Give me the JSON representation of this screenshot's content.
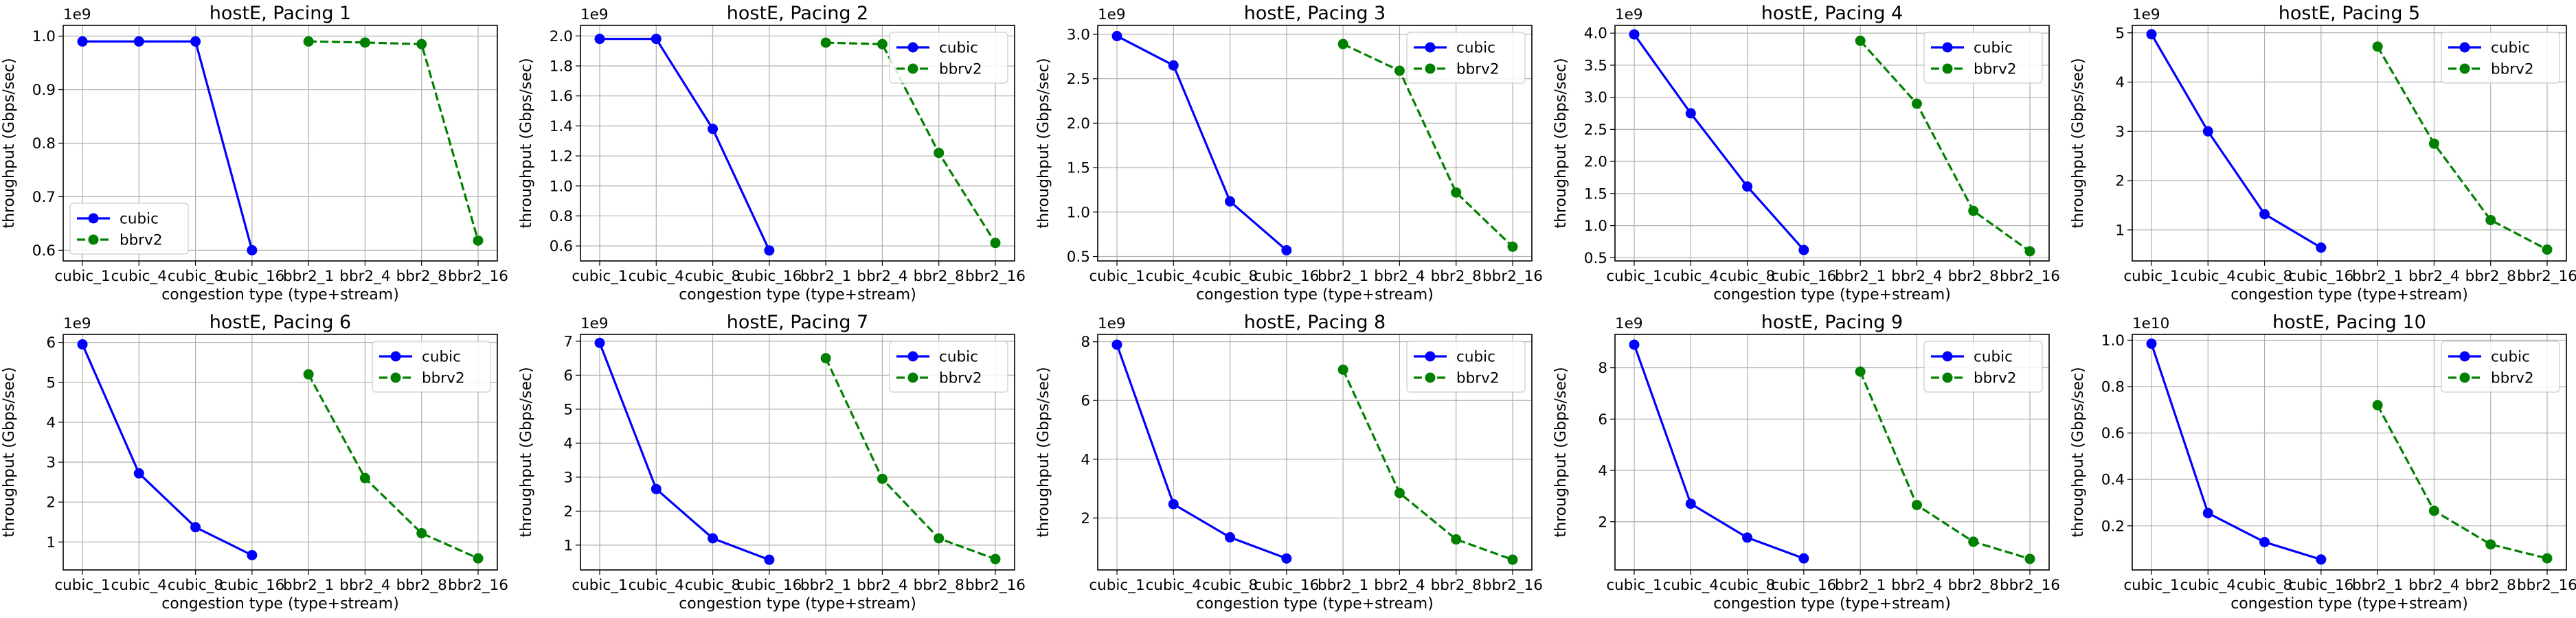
{
  "colors": {
    "cubic": "#0000ff",
    "bbrv2": "#008000",
    "grid": "#b0b0b0"
  },
  "chart_data": [
    {
      "type": "line",
      "title": "hostE, Pacing 1",
      "xlabel": "congestion type (type+stream)",
      "ylabel": "throughput (Gbps/sec)",
      "categories": [
        "cubic_1",
        "cubic_4",
        "cubic_8",
        "cubic_16",
        "bbr2_1",
        "bbr2_4",
        "bbr2_8",
        "bbr2_16"
      ],
      "ylim": [
        0.58,
        1.02
      ],
      "yticks": [
        0.6,
        0.7,
        0.8,
        0.9,
        1.0
      ],
      "ytick_labels": [
        "0.6",
        "0.7",
        "0.8",
        "0.9",
        "1.0"
      ],
      "offset_label": "1e9",
      "grid": true,
      "legend_loc": "lower-left",
      "series": [
        {
          "name": "cubic",
          "style": "solid",
          "values": [
            0.99,
            0.99,
            0.99,
            0.6,
            null,
            null,
            null,
            null
          ]
        },
        {
          "name": "bbrv2",
          "style": "dashed",
          "values": [
            null,
            null,
            null,
            null,
            0.99,
            0.988,
            0.985,
            0.618
          ]
        }
      ]
    },
    {
      "type": "line",
      "title": "hostE, Pacing 2",
      "xlabel": "congestion type (type+stream)",
      "ylabel": "throughput (Gbps/sec)",
      "categories": [
        "cubic_1",
        "cubic_4",
        "cubic_8",
        "cubic_16",
        "bbr2_1",
        "bbr2_4",
        "bbr2_8",
        "bbr2_16"
      ],
      "ylim": [
        0.5,
        2.07
      ],
      "yticks": [
        0.6,
        0.8,
        1.0,
        1.2,
        1.4,
        1.6,
        1.8,
        2.0
      ],
      "ytick_labels": [
        "0.6",
        "0.8",
        "1.0",
        "1.2",
        "1.4",
        "1.6",
        "1.8",
        "2.0"
      ],
      "offset_label": "1e9",
      "grid": true,
      "legend_loc": "upper-right",
      "series": [
        {
          "name": "cubic",
          "style": "solid",
          "values": [
            1.98,
            1.98,
            1.38,
            0.57,
            null,
            null,
            null,
            null
          ]
        },
        {
          "name": "bbrv2",
          "style": "dashed",
          "values": [
            null,
            null,
            null,
            null,
            1.955,
            1.945,
            1.22,
            0.62
          ]
        }
      ]
    },
    {
      "type": "line",
      "title": "hostE, Pacing 3",
      "xlabel": "congestion type (type+stream)",
      "ylabel": "throughput (Gbps/sec)",
      "categories": [
        "cubic_1",
        "cubic_4",
        "cubic_8",
        "cubic_16",
        "bbr2_1",
        "bbr2_4",
        "bbr2_8",
        "bbr2_16"
      ],
      "ylim": [
        0.45,
        3.1
      ],
      "yticks": [
        0.5,
        1.0,
        1.5,
        2.0,
        2.5,
        3.0
      ],
      "ytick_labels": [
        "0.5",
        "1.0",
        "1.5",
        "2.0",
        "2.5",
        "3.0"
      ],
      "offset_label": "1e9",
      "grid": true,
      "legend_loc": "upper-right",
      "series": [
        {
          "name": "cubic",
          "style": "solid",
          "values": [
            2.98,
            2.65,
            1.12,
            0.57,
            null,
            null,
            null,
            null
          ]
        },
        {
          "name": "bbrv2",
          "style": "dashed",
          "values": [
            null,
            null,
            null,
            null,
            2.89,
            2.59,
            1.22,
            0.61
          ]
        }
      ]
    },
    {
      "type": "line",
      "title": "hostE, Pacing 4",
      "xlabel": "congestion type (type+stream)",
      "ylabel": "throughput (Gbps/sec)",
      "categories": [
        "cubic_1",
        "cubic_4",
        "cubic_8",
        "cubic_16",
        "bbr2_1",
        "bbr2_4",
        "bbr2_8",
        "bbr2_16"
      ],
      "ylim": [
        0.45,
        4.12
      ],
      "yticks": [
        0.5,
        1.0,
        1.5,
        2.0,
        2.5,
        3.0,
        3.5,
        4.0
      ],
      "ytick_labels": [
        "0.5",
        "1.0",
        "1.5",
        "2.0",
        "2.5",
        "3.0",
        "3.5",
        "4.0"
      ],
      "offset_label": "1e9",
      "grid": true,
      "legend_loc": "upper-right",
      "series": [
        {
          "name": "cubic",
          "style": "solid",
          "values": [
            3.98,
            2.75,
            1.61,
            0.62,
            null,
            null,
            null,
            null
          ]
        },
        {
          "name": "bbrv2",
          "style": "dashed",
          "values": [
            null,
            null,
            null,
            null,
            3.88,
            2.9,
            1.23,
            0.6
          ]
        }
      ]
    },
    {
      "type": "line",
      "title": "hostE, Pacing 5",
      "xlabel": "congestion type (type+stream)",
      "ylabel": "throughput (Gbps/sec)",
      "categories": [
        "cubic_1",
        "cubic_4",
        "cubic_8",
        "cubic_16",
        "bbr2_1",
        "bbr2_4",
        "bbr2_8",
        "bbr2_16"
      ],
      "ylim": [
        0.37,
        5.15
      ],
      "yticks": [
        1,
        2,
        3,
        4,
        5
      ],
      "ytick_labels": [
        "1",
        "2",
        "3",
        "4",
        "5"
      ],
      "offset_label": "1e9",
      "grid": true,
      "legend_loc": "upper-right",
      "series": [
        {
          "name": "cubic",
          "style": "solid",
          "values": [
            4.97,
            3.0,
            1.32,
            0.64,
            null,
            null,
            null,
            null
          ]
        },
        {
          "name": "bbrv2",
          "style": "dashed",
          "values": [
            null,
            null,
            null,
            null,
            4.72,
            2.75,
            1.2,
            0.6
          ]
        }
      ]
    },
    {
      "type": "line",
      "title": "hostE, Pacing 6",
      "xlabel": "congestion type (type+stream)",
      "ylabel": "throughput (Gbps/sec)",
      "categories": [
        "cubic_1",
        "cubic_4",
        "cubic_8",
        "cubic_16",
        "bbr2_1",
        "bbr2_4",
        "bbr2_8",
        "bbr2_16"
      ],
      "ylim": [
        0.3,
        6.2
      ],
      "yticks": [
        1,
        2,
        3,
        4,
        5,
        6
      ],
      "ytick_labels": [
        "1",
        "2",
        "3",
        "4",
        "5",
        "6"
      ],
      "offset_label": "1e9",
      "grid": true,
      "legend_loc": "upper-right",
      "series": [
        {
          "name": "cubic",
          "style": "solid",
          "values": [
            5.95,
            2.72,
            1.37,
            0.67,
            null,
            null,
            null,
            null
          ]
        },
        {
          "name": "bbrv2",
          "style": "dashed",
          "values": [
            null,
            null,
            null,
            null,
            5.2,
            2.6,
            1.22,
            0.59
          ]
        }
      ]
    },
    {
      "type": "line",
      "title": "hostE, Pacing 7",
      "xlabel": "congestion type (type+stream)",
      "ylabel": "throughput (Gbps/sec)",
      "categories": [
        "cubic_1",
        "cubic_4",
        "cubic_8",
        "cubic_16",
        "bbr2_1",
        "bbr2_4",
        "bbr2_8",
        "bbr2_16"
      ],
      "ylim": [
        0.27,
        7.2
      ],
      "yticks": [
        1,
        2,
        3,
        4,
        5,
        6,
        7
      ],
      "ytick_labels": [
        "1",
        "2",
        "3",
        "4",
        "5",
        "6",
        "7"
      ],
      "offset_label": "1e9",
      "grid": true,
      "legend_loc": "upper-right",
      "series": [
        {
          "name": "cubic",
          "style": "solid",
          "values": [
            6.95,
            2.65,
            1.2,
            0.57,
            null,
            null,
            null,
            null
          ]
        },
        {
          "name": "bbrv2",
          "style": "dashed",
          "values": [
            null,
            null,
            null,
            null,
            6.5,
            2.95,
            1.2,
            0.59
          ]
        }
      ]
    },
    {
      "type": "line",
      "title": "hostE, Pacing 8",
      "xlabel": "congestion type (type+stream)",
      "ylabel": "throughput (Gbps/sec)",
      "categories": [
        "cubic_1",
        "cubic_4",
        "cubic_8",
        "cubic_16",
        "bbr2_1",
        "bbr2_4",
        "bbr2_8",
        "bbr2_16"
      ],
      "ylim": [
        0.23,
        8.25
      ],
      "yticks": [
        2,
        4,
        6,
        8
      ],
      "ytick_labels": [
        "2",
        "4",
        "6",
        "8"
      ],
      "offset_label": "1e9",
      "grid": true,
      "legend_loc": "upper-right",
      "series": [
        {
          "name": "cubic",
          "style": "solid",
          "values": [
            7.9,
            2.47,
            1.34,
            0.62,
            null,
            null,
            null,
            null
          ]
        },
        {
          "name": "bbrv2",
          "style": "dashed",
          "values": [
            null,
            null,
            null,
            null,
            7.05,
            2.85,
            1.27,
            0.58
          ]
        }
      ]
    },
    {
      "type": "line",
      "title": "hostE, Pacing 9",
      "xlabel": "congestion type (type+stream)",
      "ylabel": "throughput (Gbps/sec)",
      "categories": [
        "cubic_1",
        "cubic_4",
        "cubic_8",
        "cubic_16",
        "bbr2_1",
        "bbr2_4",
        "bbr2_8",
        "bbr2_16"
      ],
      "ylim": [
        0.12,
        9.3
      ],
      "yticks": [
        2,
        4,
        6,
        8
      ],
      "ytick_labels": [
        "2",
        "4",
        "6",
        "8"
      ],
      "offset_label": "1e9",
      "grid": true,
      "legend_loc": "upper-right",
      "series": [
        {
          "name": "cubic",
          "style": "solid",
          "values": [
            8.9,
            2.7,
            1.38,
            0.57,
            null,
            null,
            null,
            null
          ]
        },
        {
          "name": "bbrv2",
          "style": "dashed",
          "values": [
            null,
            null,
            null,
            null,
            7.85,
            2.65,
            1.22,
            0.55
          ]
        }
      ]
    },
    {
      "type": "line",
      "title": "hostE, Pacing 10",
      "xlabel": "congestion type (type+stream)",
      "ylabel": "throughput (Gbps/sec)",
      "categories": [
        "cubic_1",
        "cubic_4",
        "cubic_8",
        "cubic_16",
        "bbr2_1",
        "bbr2_4",
        "bbr2_8",
        "bbr2_16"
      ],
      "ylim": [
        0.01,
        1.025
      ],
      "yticks": [
        0.2,
        0.4,
        0.6,
        0.8,
        1.0
      ],
      "ytick_labels": [
        "0.2",
        "0.4",
        "0.6",
        "0.8",
        "1.0"
      ],
      "offset_label": "1e10",
      "grid": true,
      "legend_loc": "upper-right",
      "series": [
        {
          "name": "cubic",
          "style": "solid",
          "values": [
            0.985,
            0.255,
            0.13,
            0.055,
            null,
            null,
            null,
            null
          ]
        },
        {
          "name": "bbrv2",
          "style": "dashed",
          "values": [
            null,
            null,
            null,
            null,
            0.72,
            0.265,
            0.12,
            0.06
          ]
        }
      ]
    }
  ]
}
